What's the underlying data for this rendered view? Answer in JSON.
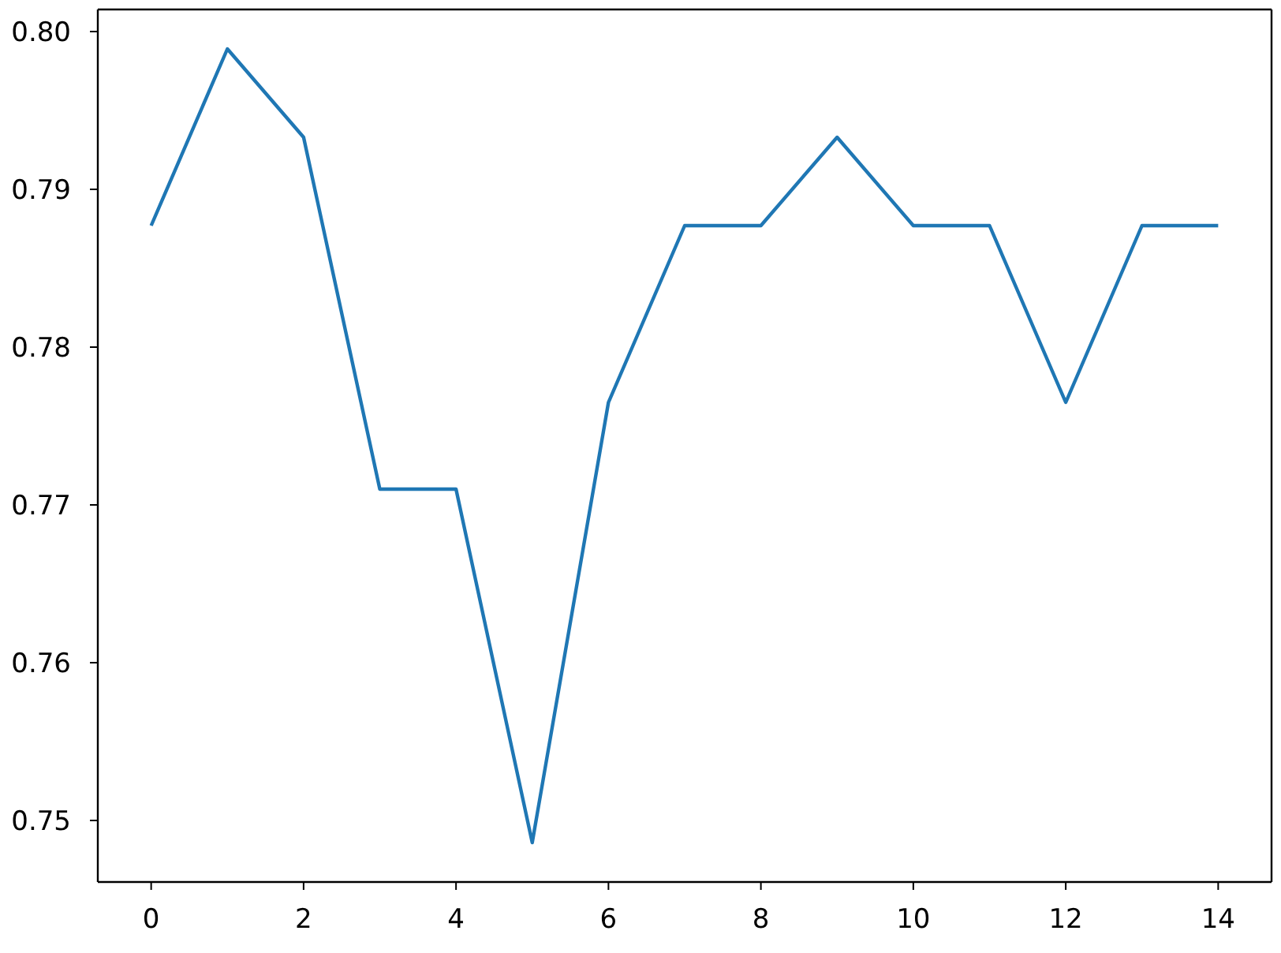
{
  "chart_data": {
    "type": "line",
    "x": [
      0,
      1,
      2,
      3,
      4,
      5,
      6,
      7,
      8,
      9,
      10,
      11,
      12,
      13,
      14
    ],
    "values": [
      0.7877,
      0.7989,
      0.7933,
      0.771,
      0.771,
      0.7486,
      0.7765,
      0.7877,
      0.7877,
      0.7933,
      0.7877,
      0.7877,
      0.7765,
      0.7877,
      0.7877
    ],
    "color": "#1f77b4",
    "xlim": [
      -0.7,
      14.7
    ],
    "xticks": [
      0,
      2,
      4,
      6,
      8,
      10,
      12,
      14
    ],
    "ylim": [
      0.7461,
      0.8014
    ],
    "yticks": [
      {
        "value": 0.8,
        "label": "0.80"
      },
      0.79,
      0.78,
      0.77,
      0.76,
      0.75
    ]
  }
}
